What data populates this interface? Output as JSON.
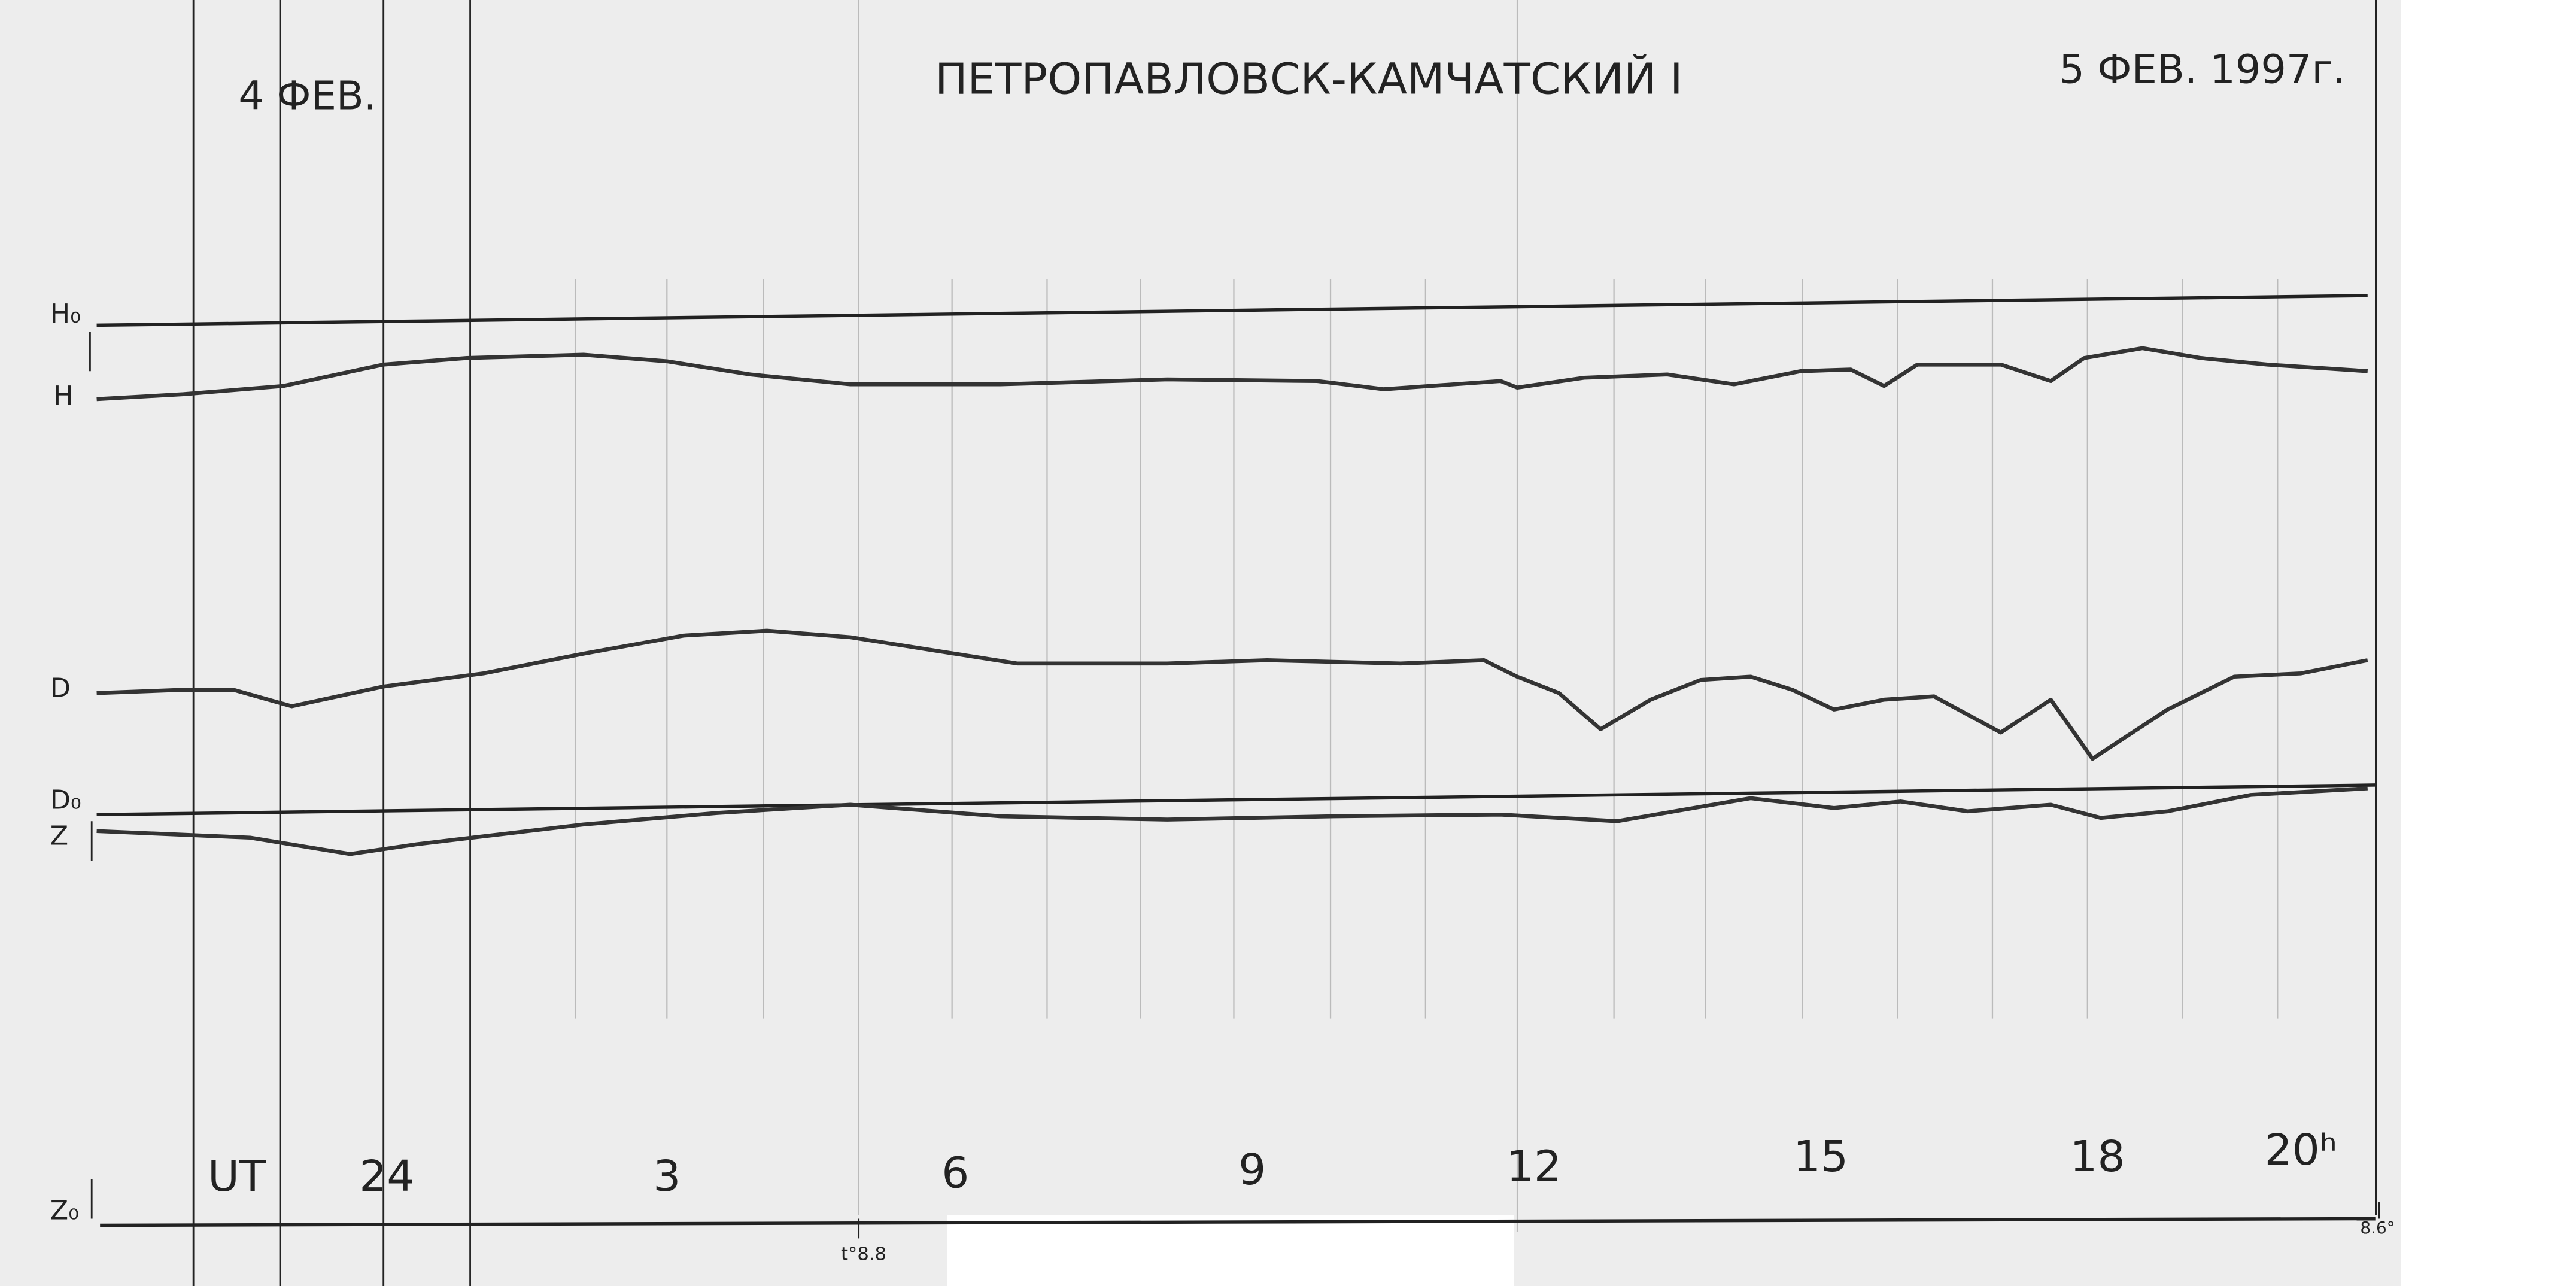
{
  "header": {
    "left_date": "4 ФЕВ.",
    "title": "ПЕТРОПАВЛОВСК-КАМЧАТСКИЙ I",
    "right_date": "5 ФЕВ. 1997г."
  },
  "traces": {
    "labels": [
      "H₀",
      "H",
      "D",
      "D₀",
      "Z",
      "Z₀"
    ]
  },
  "time_axis": {
    "unit": "UT",
    "hours": [
      "24",
      "3",
      "6",
      "9",
      "12",
      "15",
      "18",
      "20ʰ"
    ]
  },
  "temperatures": [
    "t°8.8",
    "8.6°"
  ]
}
